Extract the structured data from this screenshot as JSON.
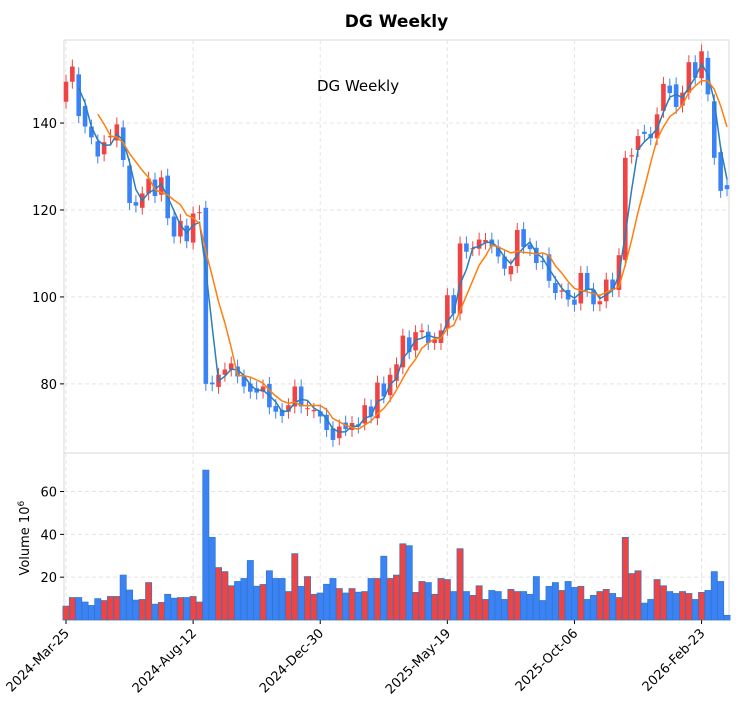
{
  "chart_data": {
    "type": "candlestick",
    "title": "DG  Weekly",
    "annotation": "DG  Weekly",
    "ylabel_volume": "Volume  10",
    "ylabel_volume_exp": "6",
    "price_ylim": [
      64.1,
      159.1
    ],
    "volume_ylim": [
      0,
      78
    ],
    "price_yticks": [
      80,
      100,
      120,
      140
    ],
    "volume_yticks": [
      20,
      40,
      60
    ],
    "xtick_labels": [
      "2024-Mar-25",
      "2024-Aug-12",
      "2024-Dec-30",
      "2025-May-19",
      "2025-Oct-06",
      "2026-Feb-23"
    ],
    "xtick_indices": [
      0,
      20,
      40,
      60,
      80,
      100
    ],
    "grid": true,
    "ma_periods": [
      3,
      6
    ],
    "colors": {
      "up": "#ef4444",
      "down": "#3b82f6",
      "ma_short": "#2a7fb8",
      "ma_long": "#ff7f0e",
      "vol_edge": "#2f78c4"
    },
    "open": [
      144.9,
      149.5,
      151.2,
      143.9,
      139.2,
      135.8,
      132.8,
      136.7,
      136.0,
      139.0,
      130.2,
      121.8,
      120.5,
      123.8,
      127.0,
      123.5,
      127.9,
      118.5,
      113.9,
      116.4,
      112.5,
      119.3,
      120.5,
      80.3,
      79.3,
      82.1,
      83.3,
      84.0,
      81.7,
      80.1,
      79.0,
      78.2,
      80.0,
      74.9,
      74.0,
      73.6,
      74.8,
      79.4,
      74.2,
      73.7,
      73.7,
      72.9,
      69.8,
      67.5,
      71.1,
      69.4,
      70.7,
      70.9,
      74.8,
      72.1,
      80.1,
      77.4,
      80.7,
      83.8,
      90.7,
      87.7,
      91.9,
      92.0,
      89.4,
      89.4,
      92.7,
      100.4,
      96.2,
      112.3,
      111.0,
      111.1,
      112.5,
      113.2,
      111.6,
      109.3,
      105.2,
      107.1,
      115.6,
      112.0,
      111.3,
      108.3,
      109.8,
      103.2,
      101.2,
      101.6,
      99.4,
      98.5,
      105.5,
      101.6,
      98.3,
      99.0,
      104.0,
      101.6,
      108.5,
      132.3,
      133.8,
      138.0,
      137.5,
      136.5,
      142.8,
      148.6,
      148.9,
      144.0,
      147.0,
      154.0,
      150.3,
      155.0,
      145.0,
      133.3,
      125.7
    ],
    "close": [
      149.5,
      153.0,
      141.6,
      139.2,
      136.7,
      132.3,
      135.6,
      137.0,
      139.7,
      131.5,
      121.6,
      121.0,
      123.8,
      127.2,
      123.2,
      127.5,
      118.1,
      113.9,
      117.5,
      112.8,
      119.2,
      119.5,
      80.0,
      79.9,
      82.1,
      83.3,
      84.7,
      81.7,
      79.4,
      78.2,
      78.0,
      79.4,
      74.6,
      73.6,
      72.6,
      75.1,
      79.4,
      74.8,
      74.4,
      74.0,
      72.5,
      69.4,
      67.1,
      70.2,
      69.6,
      71.0,
      70.2,
      75.1,
      72.5,
      80.3,
      77.1,
      82.1,
      84.5,
      91.1,
      87.3,
      91.9,
      92.3,
      89.4,
      90.2,
      92.3,
      100.4,
      96.2,
      112.3,
      110.4,
      111.2,
      113.2,
      113.1,
      111.6,
      109.3,
      106.5,
      107.1,
      115.4,
      111.5,
      111.0,
      107.8,
      108.0,
      103.7,
      100.9,
      101.5,
      99.4,
      98.2,
      105.5,
      101.6,
      98.3,
      99.0,
      104.0,
      101.6,
      109.6,
      132.0,
      132.6,
      137.0,
      137.5,
      136.5,
      142.0,
      149.0,
      146.9,
      143.7,
      147.0,
      154.0,
      150.4,
      156.5,
      146.6,
      132.0,
      124.4,
      124.8
    ],
    "volume": [
      6.5,
      10.5,
      10.5,
      8.4,
      6.8,
      10,
      9.1,
      11,
      11,
      21,
      14,
      9.3,
      9.6,
      17.5,
      7.4,
      8.2,
      12,
      10.2,
      10.5,
      10.5,
      11,
      8.4,
      70,
      38.6,
      24.5,
      22.6,
      16,
      18,
      19.4,
      27.8,
      15.8,
      16.6,
      23,
      19.4,
      19.4,
      13.3,
      31,
      15.7,
      20.3,
      12,
      12.6,
      16.7,
      19.4,
      14.7,
      12.6,
      14.7,
      13,
      13.3,
      19.4,
      19.4,
      29.8,
      19.4,
      21,
      35.6,
      34.7,
      12.9,
      18,
      17.5,
      12,
      19.4,
      18.9,
      13.3,
      33.3,
      13.3,
      11.5,
      16,
      9.6,
      13.8,
      13.3,
      9.6,
      14.3,
      13.3,
      13.3,
      12,
      20.3,
      9.1,
      15.7,
      17.5,
      13.8,
      18,
      15.2,
      15.7,
      9.6,
      11.5,
      13.3,
      14.3,
      12.4,
      10.5,
      38.6,
      21.7,
      23,
      7.9,
      9.6,
      18.9,
      16,
      13.3,
      12.4,
      13.3,
      12.4,
      9.6,
      12.9,
      13.8,
      22.6,
      18,
      2.2
    ]
  }
}
